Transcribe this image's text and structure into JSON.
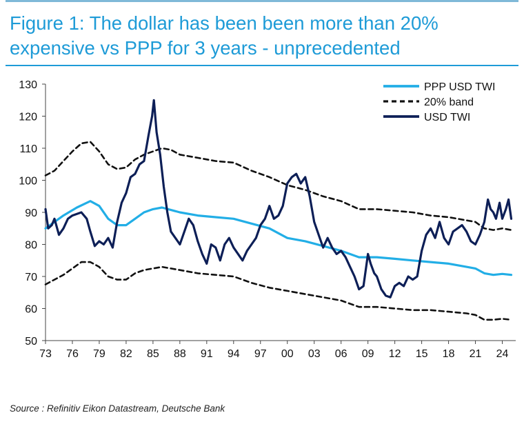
{
  "header": {
    "title_line1": "Figure 1: The dollar has been been more than 20%",
    "title_line2": "expensive vs PPP for 3 years - unprecedented"
  },
  "footer": {
    "source": "Source : Refinitiv Eikon Datastream, Deutsche Bank"
  },
  "colors": {
    "title": "#1e9bd7",
    "ppp": "#22aee6",
    "band": "#111111",
    "usd": "#0d1f57"
  },
  "chart_data": {
    "type": "line",
    "xlim": [
      1973,
      2025.5
    ],
    "ylim": [
      50,
      130
    ],
    "x_ticks": [
      {
        "value": 1973,
        "label": "73"
      },
      {
        "value": 1976,
        "label": "76"
      },
      {
        "value": 1979,
        "label": "79"
      },
      {
        "value": 1982,
        "label": "82"
      },
      {
        "value": 1985,
        "label": "85"
      },
      {
        "value": 1988,
        "label": "88"
      },
      {
        "value": 1991,
        "label": "91"
      },
      {
        "value": 1994,
        "label": "94"
      },
      {
        "value": 1997,
        "label": "97"
      },
      {
        "value": 2000,
        "label": "00"
      },
      {
        "value": 2003,
        "label": "03"
      },
      {
        "value": 2006,
        "label": "06"
      },
      {
        "value": 2009,
        "label": "09"
      },
      {
        "value": 2012,
        "label": "12"
      },
      {
        "value": 2015,
        "label": "15"
      },
      {
        "value": 2018,
        "label": "18"
      },
      {
        "value": 2021,
        "label": "21"
      },
      {
        "value": 2024,
        "label": "24"
      }
    ],
    "y_ticks": [
      130,
      120,
      110,
      100,
      90,
      80,
      70,
      60,
      50
    ],
    "legend_position": "top-right",
    "series": [
      {
        "name": "PPP USD TWI",
        "style": "solid-thick",
        "points": [
          [
            1973,
            85
          ],
          [
            1975,
            89
          ],
          [
            1976.5,
            91.5
          ],
          [
            1978,
            93.5
          ],
          [
            1979,
            92
          ],
          [
            1980,
            88
          ],
          [
            1981,
            86
          ],
          [
            1982,
            86
          ],
          [
            1983,
            88
          ],
          [
            1984,
            90
          ],
          [
            1985,
            91
          ],
          [
            1986,
            91.5
          ],
          [
            1988,
            90
          ],
          [
            1990,
            89
          ],
          [
            1992,
            88.5
          ],
          [
            1994,
            88
          ],
          [
            1996,
            86.5
          ],
          [
            1998,
            85
          ],
          [
            2000,
            82
          ],
          [
            2002,
            81
          ],
          [
            2004,
            79.5
          ],
          [
            2006,
            78
          ],
          [
            2008,
            76
          ],
          [
            2010,
            76
          ],
          [
            2012,
            75.5
          ],
          [
            2014,
            75
          ],
          [
            2016,
            74.5
          ],
          [
            2018,
            74
          ],
          [
            2020,
            73
          ],
          [
            2021,
            72.5
          ],
          [
            2022,
            71
          ],
          [
            2023,
            70.5
          ],
          [
            2024,
            70.8
          ],
          [
            2025,
            70.5
          ]
        ]
      },
      {
        "name": "20% band",
        "style": "dashed",
        "points": [
          [
            1973,
            101.5
          ],
          [
            1974,
            103
          ],
          [
            1975,
            106
          ],
          [
            1976,
            109
          ],
          [
            1977,
            111.5
          ],
          [
            1978,
            112
          ],
          [
            1979,
            109
          ],
          [
            1980,
            105
          ],
          [
            1981,
            103.5
          ],
          [
            1982,
            104
          ],
          [
            1983,
            106.5
          ],
          [
            1984,
            108
          ],
          [
            1985,
            109
          ],
          [
            1986,
            110
          ],
          [
            1987,
            109.5
          ],
          [
            1988,
            108
          ],
          [
            1990,
            107
          ],
          [
            1992,
            106
          ],
          [
            1994,
            105.5
          ],
          [
            1996,
            103
          ],
          [
            1998,
            101
          ],
          [
            2000,
            98.5
          ],
          [
            2002,
            97
          ],
          [
            2004,
            95
          ],
          [
            2006,
            93.5
          ],
          [
            2008,
            91
          ],
          [
            2010,
            91
          ],
          [
            2012,
            90.5
          ],
          [
            2014,
            90
          ],
          [
            2016,
            89
          ],
          [
            2018,
            88.5
          ],
          [
            2020,
            87.5
          ],
          [
            2021,
            87
          ],
          [
            2022,
            85
          ],
          [
            2023,
            84.5
          ],
          [
            2024,
            85
          ],
          [
            2025,
            84.5
          ]
        ]
      },
      {
        "name": "",
        "style": "dashed",
        "points": [
          [
            1973,
            67.5
          ],
          [
            1974,
            69
          ],
          [
            1975,
            70.5
          ],
          [
            1976,
            72.5
          ],
          [
            1977,
            74.5
          ],
          [
            1978,
            74.5
          ],
          [
            1979,
            73
          ],
          [
            1980,
            70
          ],
          [
            1981,
            69
          ],
          [
            1982,
            69
          ],
          [
            1983,
            71
          ],
          [
            1984,
            72
          ],
          [
            1985,
            72.5
          ],
          [
            1986,
            73
          ],
          [
            1987,
            72.5
          ],
          [
            1988,
            72
          ],
          [
            1990,
            71
          ],
          [
            1992,
            70.5
          ],
          [
            1994,
            70
          ],
          [
            1996,
            68
          ],
          [
            1998,
            66.5
          ],
          [
            2000,
            65.5
          ],
          [
            2002,
            64.5
          ],
          [
            2004,
            63.5
          ],
          [
            2006,
            62.5
          ],
          [
            2008,
            60.5
          ],
          [
            2010,
            60.5
          ],
          [
            2012,
            60
          ],
          [
            2014,
            59.5
          ],
          [
            2016,
            59.5
          ],
          [
            2018,
            59
          ],
          [
            2020,
            58.5
          ],
          [
            2021,
            58
          ],
          [
            2022,
            56.5
          ],
          [
            2023,
            56.5
          ],
          [
            2024,
            56.8
          ],
          [
            2025,
            56.5
          ]
        ]
      },
      {
        "name": "USD TWI",
        "style": "solid-thick",
        "points": [
          [
            1973,
            91
          ],
          [
            1973.3,
            85
          ],
          [
            1973.7,
            86
          ],
          [
            1974,
            88
          ],
          [
            1974.5,
            83
          ],
          [
            1975,
            85
          ],
          [
            1975.5,
            88
          ],
          [
            1976,
            89
          ],
          [
            1977,
            90
          ],
          [
            1977.6,
            88
          ],
          [
            1978,
            84
          ],
          [
            1978.5,
            79.5
          ],
          [
            1979,
            81
          ],
          [
            1979.5,
            80
          ],
          [
            1980,
            82
          ],
          [
            1980.5,
            79
          ],
          [
            1981,
            87
          ],
          [
            1981.5,
            93
          ],
          [
            1982,
            96
          ],
          [
            1982.5,
            101
          ],
          [
            1983,
            102
          ],
          [
            1983.5,
            105
          ],
          [
            1984,
            106
          ],
          [
            1984.5,
            114
          ],
          [
            1984.9,
            120
          ],
          [
            1985.1,
            125
          ],
          [
            1985.4,
            115
          ],
          [
            1985.8,
            108
          ],
          [
            1986.2,
            98
          ],
          [
            1986.6,
            90
          ],
          [
            1987,
            84
          ],
          [
            1987.5,
            82
          ],
          [
            1988,
            80
          ],
          [
            1988.5,
            84
          ],
          [
            1989,
            88
          ],
          [
            1989.5,
            86
          ],
          [
            1990,
            81
          ],
          [
            1990.5,
            77
          ],
          [
            1991,
            74
          ],
          [
            1991.5,
            80
          ],
          [
            1992,
            79
          ],
          [
            1992.5,
            75
          ],
          [
            1993,
            80
          ],
          [
            1993.5,
            82
          ],
          [
            1994,
            79
          ],
          [
            1994.5,
            77
          ],
          [
            1995,
            75
          ],
          [
            1995.5,
            78
          ],
          [
            1996,
            80
          ],
          [
            1996.5,
            82
          ],
          [
            1997,
            86
          ],
          [
            1997.5,
            88
          ],
          [
            1998,
            92
          ],
          [
            1998.5,
            88
          ],
          [
            1999,
            89
          ],
          [
            1999.5,
            92
          ],
          [
            2000,
            99
          ],
          [
            2000.5,
            101
          ],
          [
            2001,
            102
          ],
          [
            2001.5,
            99
          ],
          [
            2002,
            101
          ],
          [
            2002.5,
            95
          ],
          [
            2003,
            87
          ],
          [
            2003.5,
            83
          ],
          [
            2004,
            79
          ],
          [
            2004.5,
            82
          ],
          [
            2005,
            79
          ],
          [
            2005.5,
            77
          ],
          [
            2006,
            78
          ],
          [
            2006.5,
            76
          ],
          [
            2007,
            73
          ],
          [
            2007.5,
            70
          ],
          [
            2008,
            66
          ],
          [
            2008.5,
            67
          ],
          [
            2009,
            77
          ],
          [
            2009.3,
            74
          ],
          [
            2009.7,
            71
          ],
          [
            2010,
            70
          ],
          [
            2010.5,
            66
          ],
          [
            2011,
            64
          ],
          [
            2011.5,
            63.5
          ],
          [
            2012,
            67
          ],
          [
            2012.5,
            68
          ],
          [
            2013,
            67
          ],
          [
            2013.5,
            70
          ],
          [
            2014,
            69
          ],
          [
            2014.5,
            70
          ],
          [
            2015,
            78
          ],
          [
            2015.5,
            83
          ],
          [
            2016,
            85
          ],
          [
            2016.5,
            82
          ],
          [
            2017,
            87
          ],
          [
            2017.5,
            82
          ],
          [
            2018,
            80
          ],
          [
            2018.5,
            84
          ],
          [
            2019,
            85
          ],
          [
            2019.5,
            86
          ],
          [
            2020,
            84
          ],
          [
            2020.5,
            81
          ],
          [
            2021,
            80
          ],
          [
            2021.5,
            83
          ],
          [
            2022,
            87
          ],
          [
            2022.4,
            94
          ],
          [
            2022.7,
            91
          ],
          [
            2023,
            90
          ],
          [
            2023.3,
            88
          ],
          [
            2023.7,
            93
          ],
          [
            2024,
            88
          ],
          [
            2024.4,
            91
          ],
          [
            2024.7,
            94
          ],
          [
            2025,
            88
          ]
        ]
      }
    ]
  }
}
